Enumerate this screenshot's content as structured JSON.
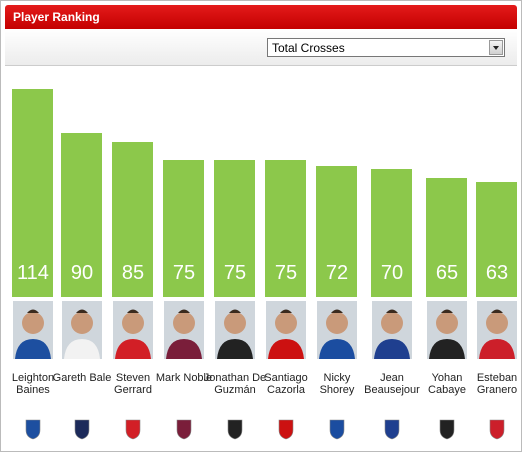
{
  "header": {
    "title": "Player Ranking"
  },
  "dropdown": {
    "selected": "Total Crosses"
  },
  "chart_data": {
    "type": "bar",
    "categories": [
      "Leighton Baines",
      "Gareth Bale",
      "Steven Gerrard",
      "Mark Noble",
      "Jonathan De Guzmán",
      "Santiago Cazorla",
      "Nicky Shorey",
      "Jean Beausejour",
      "Yohan Cabaye",
      "Esteban Granero"
    ],
    "values": [
      114,
      90,
      85,
      75,
      75,
      75,
      72,
      70,
      65,
      63
    ],
    "color": "#8cc84b"
  }
}
